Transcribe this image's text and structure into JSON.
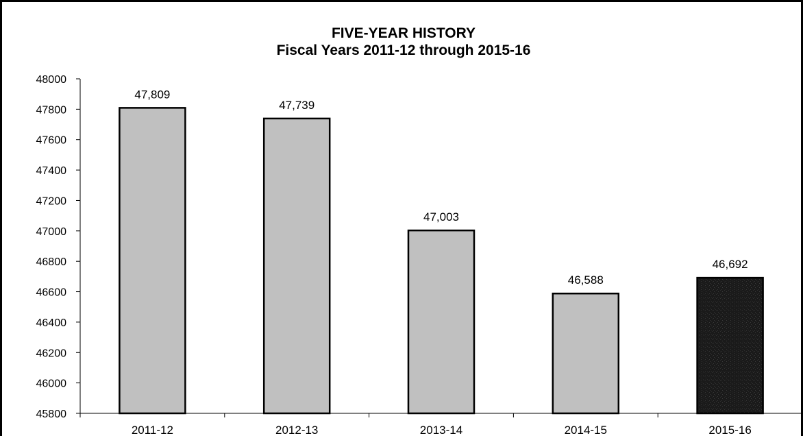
{
  "chart_data": {
    "type": "bar",
    "title": "FIVE-YEAR HISTORY",
    "subtitle": "Fiscal Years 2011-12 through 2015-16",
    "xlabel": "",
    "ylabel": "",
    "categories": [
      "2011-12",
      "2012-13",
      "2013-14",
      "2014-15",
      "2015-16"
    ],
    "values": [
      47809,
      47739,
      47003,
      46588,
      46692
    ],
    "data_labels": [
      "47,809",
      "47,739",
      "47,003",
      "46,588",
      "46,692"
    ],
    "y_ticks": [
      "48000",
      "47800",
      "47600",
      "47400",
      "47200",
      "47000",
      "46800",
      "46600",
      "46400",
      "46200",
      "46000",
      "45800"
    ],
    "ylim": [
      45800,
      48000
    ],
    "y_step": 200,
    "grid": false,
    "legend": "none",
    "colors": {
      "bar": "#c0c0c0",
      "highlight_bar": "#1a1a1a",
      "bar_border": "#000000",
      "axis": "#000000"
    },
    "highlight_index": 4
  }
}
